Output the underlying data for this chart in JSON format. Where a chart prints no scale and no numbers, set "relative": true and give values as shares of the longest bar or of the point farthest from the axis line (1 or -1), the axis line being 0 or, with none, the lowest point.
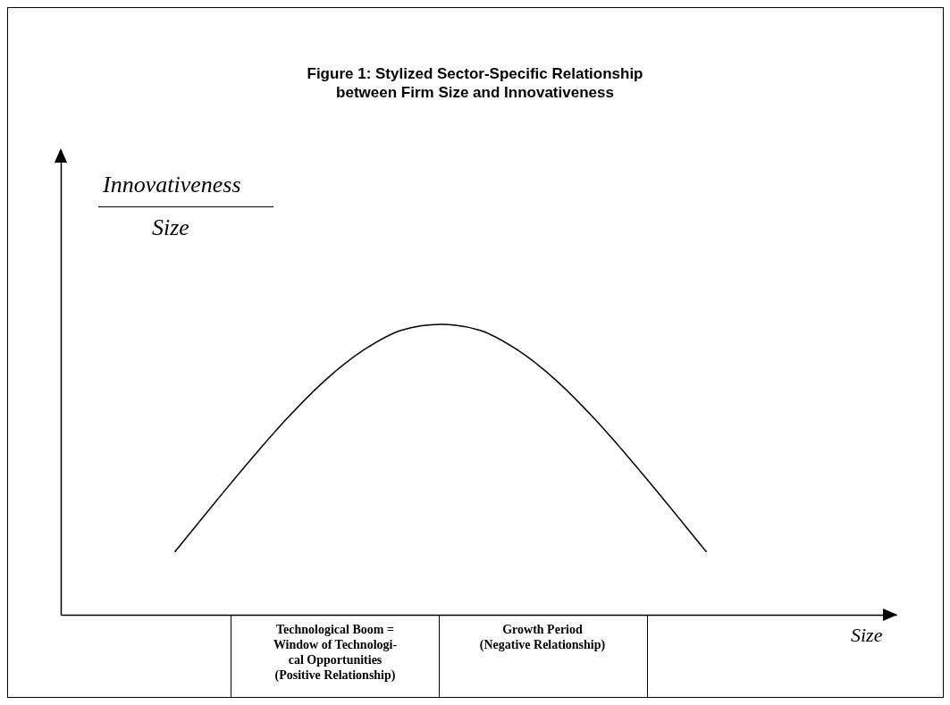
{
  "chart_data": {
    "type": "line",
    "title": "Figure 1: Stylized Sector-Specific Relationship\nbetween Firm Size and Innovativeness",
    "ylabel": "Innovativeness\nSize",
    "xlabel": "Size",
    "categories": [
      null,
      null,
      null,
      null,
      null,
      null,
      null,
      null,
      null,
      null,
      null,
      null,
      null,
      null,
      null,
      null,
      null,
      null,
      null,
      null,
      null,
      null,
      null
    ],
    "series": [
      {
        "color": "#000000",
        "values": [
          null,
          null,
          null,
          0.216,
          0.377,
          0.534,
          0.682,
          0.812,
          0.914,
          0.981,
          1,
          0.981,
          0.914,
          0.812,
          0.682,
          0.534,
          0.377,
          0.216,
          null,
          null,
          null,
          null,
          null
        ]
      }
    ],
    "relative": true,
    "tick_labels": false,
    "grid": false,
    "marker": "none",
    "line_style": "solid",
    "annotations": [
      "Technological Boom =\nWindow of Technologi-\ncal Opportunities\n(Positive Relationship)",
      "Growth Period\n(Negative Relationship)"
    ]
  }
}
